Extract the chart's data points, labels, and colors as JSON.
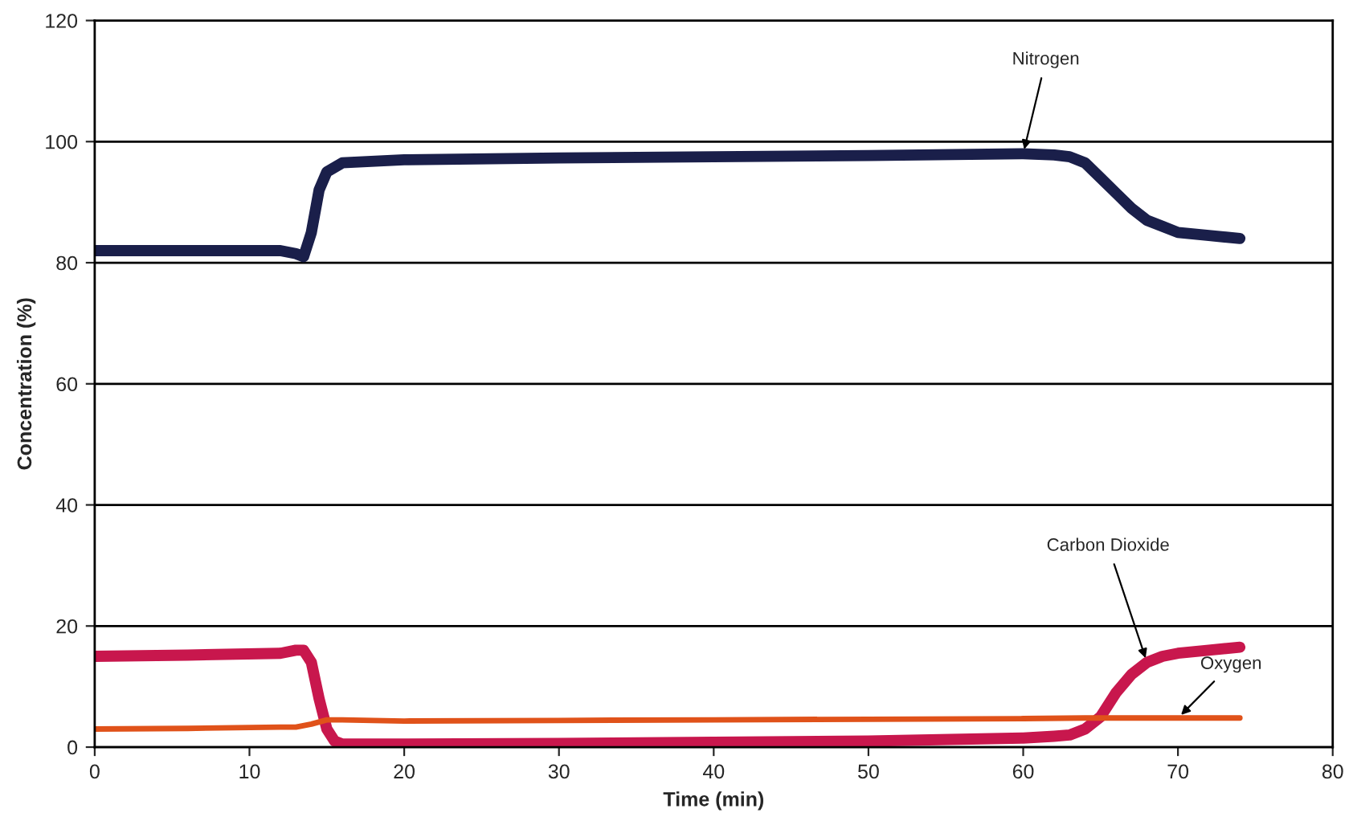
{
  "chart_data": {
    "type": "line",
    "xlabel": "Time (min)",
    "ylabel": "Concentration (%)",
    "xlim": [
      0,
      80
    ],
    "xticks": [
      0,
      10,
      20,
      30,
      40,
      50,
      60,
      70,
      80
    ],
    "ylim": [
      0,
      120
    ],
    "yticks": [
      0,
      20,
      40,
      60,
      80,
      100,
      120
    ],
    "grid": "y",
    "legend": false,
    "marker": "none",
    "line_style": "solid",
    "series": [
      {
        "name": "Nitrogen",
        "color": "#1a1f4a",
        "x": [
          0,
          6,
          12,
          13,
          13.5,
          14,
          14.5,
          15,
          16,
          20,
          30,
          40,
          50,
          60,
          62,
          63,
          64,
          65,
          66,
          67,
          68,
          69,
          70,
          72,
          74
        ],
        "values": [
          82,
          82,
          82,
          81.5,
          81,
          85,
          92,
          95,
          96.5,
          97,
          97.3,
          97.5,
          97.7,
          98,
          97.8,
          97.5,
          96.5,
          94,
          91.5,
          89,
          87,
          86,
          85,
          84.5,
          84
        ]
      },
      {
        "name": "Carbon Dioxide",
        "color": "#c8174d",
        "x": [
          0,
          6,
          12,
          13,
          13.5,
          14,
          14.5,
          15,
          15.5,
          16,
          17,
          20,
          30,
          40,
          50,
          60,
          62,
          63,
          64,
          65,
          66,
          67,
          68,
          69,
          70,
          72,
          74
        ],
        "values": [
          15,
          15.2,
          15.5,
          16,
          16,
          14,
          8,
          3,
          1,
          0.5,
          0.5,
          0.5,
          0.6,
          0.8,
          1,
          1.5,
          1.8,
          2,
          3,
          5,
          9,
          12,
          14,
          15,
          15.5,
          16,
          16.5
        ]
      },
      {
        "name": "Oxygen",
        "color": "#e0521a",
        "x": [
          0,
          6,
          12,
          13,
          14,
          15,
          16,
          20,
          30,
          40,
          50,
          60,
          64,
          66,
          70,
          74
        ],
        "values": [
          3,
          3.1,
          3.3,
          3.3,
          3.8,
          4.5,
          4.5,
          4.3,
          4.4,
          4.5,
          4.6,
          4.7,
          4.8,
          4.8,
          4.8,
          4.8
        ]
      }
    ]
  }
}
